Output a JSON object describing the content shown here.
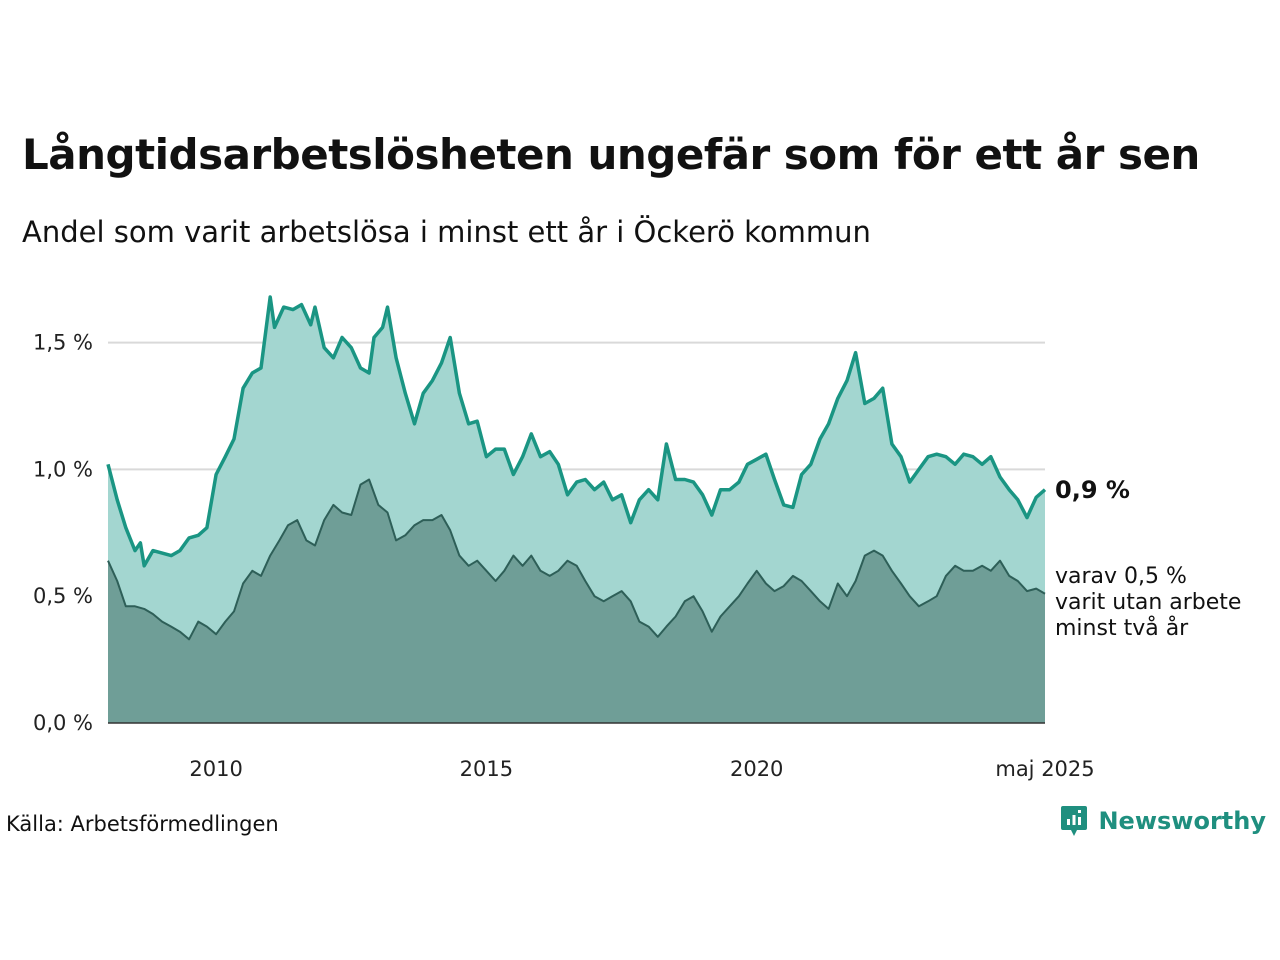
{
  "title": "Långtidsarbetslösheten ungefär som för ett år sen",
  "subtitle": "Andel som varit arbetslösa i minst ett år i Öckerö kommun",
  "source": "Källa: Arbetsförmedlingen",
  "brand": "Newsworthy",
  "colors": {
    "line_main": "#1a9583",
    "area_main": "#a3d6d0",
    "line_sub": "#2e5f58",
    "area_sub": "#6f9e97",
    "grid": "#d9d9d9"
  },
  "chart_data": {
    "type": "area",
    "x_unit": "year",
    "x_start": 2008.0,
    "x_end": 2025.333,
    "ylim": [
      0,
      1.7
    ],
    "yticks": [
      {
        "value": 0.0,
        "label": "0,0 %"
      },
      {
        "value": 0.5,
        "label": "0,5 %"
      },
      {
        "value": 1.0,
        "label": "1,0 %"
      },
      {
        "value": 1.5,
        "label": "1,5 %"
      }
    ],
    "xticks": [
      {
        "value": 2010,
        "label": "2010"
      },
      {
        "value": 2015,
        "label": "2015"
      },
      {
        "value": 2020,
        "label": "2020"
      },
      {
        "value": 2025.333,
        "label": "maj 2025"
      }
    ],
    "series": [
      {
        "key": "main",
        "end_label": "0,9 %",
        "points": [
          [
            2008.0,
            1.02
          ],
          [
            2008.17,
            0.88
          ],
          [
            2008.33,
            0.77
          ],
          [
            2008.5,
            0.68
          ],
          [
            2008.6,
            0.71
          ],
          [
            2008.67,
            0.62
          ],
          [
            2008.83,
            0.68
          ],
          [
            2009.0,
            0.67
          ],
          [
            2009.17,
            0.66
          ],
          [
            2009.33,
            0.68
          ],
          [
            2009.5,
            0.73
          ],
          [
            2009.67,
            0.74
          ],
          [
            2009.83,
            0.77
          ],
          [
            2010.0,
            0.98
          ],
          [
            2010.17,
            1.05
          ],
          [
            2010.33,
            1.12
          ],
          [
            2010.5,
            1.32
          ],
          [
            2010.67,
            1.38
          ],
          [
            2010.83,
            1.4
          ],
          [
            2011.0,
            1.68
          ],
          [
            2011.08,
            1.56
          ],
          [
            2011.25,
            1.64
          ],
          [
            2011.42,
            1.63
          ],
          [
            2011.58,
            1.65
          ],
          [
            2011.75,
            1.57
          ],
          [
            2011.83,
            1.64
          ],
          [
            2012.0,
            1.48
          ],
          [
            2012.17,
            1.44
          ],
          [
            2012.33,
            1.52
          ],
          [
            2012.5,
            1.48
          ],
          [
            2012.67,
            1.4
          ],
          [
            2012.83,
            1.38
          ],
          [
            2012.92,
            1.52
          ],
          [
            2013.08,
            1.56
          ],
          [
            2013.17,
            1.64
          ],
          [
            2013.33,
            1.44
          ],
          [
            2013.5,
            1.3
          ],
          [
            2013.67,
            1.18
          ],
          [
            2013.83,
            1.3
          ],
          [
            2014.0,
            1.35
          ],
          [
            2014.17,
            1.42
          ],
          [
            2014.33,
            1.52
          ],
          [
            2014.5,
            1.3
          ],
          [
            2014.67,
            1.18
          ],
          [
            2014.83,
            1.19
          ],
          [
            2015.0,
            1.05
          ],
          [
            2015.17,
            1.08
          ],
          [
            2015.33,
            1.08
          ],
          [
            2015.5,
            0.98
          ],
          [
            2015.67,
            1.05
          ],
          [
            2015.83,
            1.14
          ],
          [
            2016.0,
            1.05
          ],
          [
            2016.17,
            1.07
          ],
          [
            2016.33,
            1.02
          ],
          [
            2016.5,
            0.9
          ],
          [
            2016.67,
            0.95
          ],
          [
            2016.83,
            0.96
          ],
          [
            2017.0,
            0.92
          ],
          [
            2017.17,
            0.95
          ],
          [
            2017.33,
            0.88
          ],
          [
            2017.5,
            0.9
          ],
          [
            2017.67,
            0.79
          ],
          [
            2017.83,
            0.88
          ],
          [
            2018.0,
            0.92
          ],
          [
            2018.17,
            0.88
          ],
          [
            2018.33,
            1.1
          ],
          [
            2018.5,
            0.96
          ],
          [
            2018.67,
            0.96
          ],
          [
            2018.83,
            0.95
          ],
          [
            2019.0,
            0.9
          ],
          [
            2019.17,
            0.82
          ],
          [
            2019.33,
            0.92
          ],
          [
            2019.5,
            0.92
          ],
          [
            2019.67,
            0.95
          ],
          [
            2019.83,
            1.02
          ],
          [
            2020.0,
            1.04
          ],
          [
            2020.17,
            1.06
          ],
          [
            2020.33,
            0.96
          ],
          [
            2020.5,
            0.86
          ],
          [
            2020.67,
            0.85
          ],
          [
            2020.83,
            0.98
          ],
          [
            2021.0,
            1.02
          ],
          [
            2021.17,
            1.12
          ],
          [
            2021.33,
            1.18
          ],
          [
            2021.5,
            1.28
          ],
          [
            2021.67,
            1.35
          ],
          [
            2021.83,
            1.46
          ],
          [
            2022.0,
            1.26
          ],
          [
            2022.17,
            1.28
          ],
          [
            2022.33,
            1.32
          ],
          [
            2022.5,
            1.1
          ],
          [
            2022.67,
            1.05
          ],
          [
            2022.83,
            0.95
          ],
          [
            2023.0,
            1.0
          ],
          [
            2023.17,
            1.05
          ],
          [
            2023.33,
            1.06
          ],
          [
            2023.5,
            1.05
          ],
          [
            2023.67,
            1.02
          ],
          [
            2023.83,
            1.06
          ],
          [
            2024.0,
            1.05
          ],
          [
            2024.17,
            1.02
          ],
          [
            2024.33,
            1.05
          ],
          [
            2024.5,
            0.97
          ],
          [
            2024.67,
            0.92
          ],
          [
            2024.83,
            0.88
          ],
          [
            2025.0,
            0.81
          ],
          [
            2025.17,
            0.89
          ],
          [
            2025.333,
            0.92
          ]
        ]
      },
      {
        "key": "sub",
        "end_label": [
          "varav 0,5 %",
          "varit utan arbete",
          "minst två år"
        ],
        "points": [
          [
            2008.0,
            0.64
          ],
          [
            2008.17,
            0.56
          ],
          [
            2008.33,
            0.46
          ],
          [
            2008.5,
            0.46
          ],
          [
            2008.67,
            0.45
          ],
          [
            2008.83,
            0.43
          ],
          [
            2009.0,
            0.4
          ],
          [
            2009.17,
            0.38
          ],
          [
            2009.33,
            0.36
          ],
          [
            2009.5,
            0.33
          ],
          [
            2009.67,
            0.4
          ],
          [
            2009.83,
            0.38
          ],
          [
            2010.0,
            0.35
          ],
          [
            2010.17,
            0.4
          ],
          [
            2010.33,
            0.44
          ],
          [
            2010.5,
            0.55
          ],
          [
            2010.67,
            0.6
          ],
          [
            2010.83,
            0.58
          ],
          [
            2011.0,
            0.66
          ],
          [
            2011.17,
            0.72
          ],
          [
            2011.33,
            0.78
          ],
          [
            2011.5,
            0.8
          ],
          [
            2011.67,
            0.72
          ],
          [
            2011.83,
            0.7
          ],
          [
            2012.0,
            0.8
          ],
          [
            2012.17,
            0.86
          ],
          [
            2012.33,
            0.83
          ],
          [
            2012.5,
            0.82
          ],
          [
            2012.67,
            0.94
          ],
          [
            2012.83,
            0.96
          ],
          [
            2013.0,
            0.86
          ],
          [
            2013.17,
            0.83
          ],
          [
            2013.33,
            0.72
          ],
          [
            2013.5,
            0.74
          ],
          [
            2013.67,
            0.78
          ],
          [
            2013.83,
            0.8
          ],
          [
            2014.0,
            0.8
          ],
          [
            2014.17,
            0.82
          ],
          [
            2014.33,
            0.76
          ],
          [
            2014.5,
            0.66
          ],
          [
            2014.67,
            0.62
          ],
          [
            2014.83,
            0.64
          ],
          [
            2015.0,
            0.6
          ],
          [
            2015.17,
            0.56
          ],
          [
            2015.33,
            0.6
          ],
          [
            2015.5,
            0.66
          ],
          [
            2015.67,
            0.62
          ],
          [
            2015.83,
            0.66
          ],
          [
            2016.0,
            0.6
          ],
          [
            2016.17,
            0.58
          ],
          [
            2016.33,
            0.6
          ],
          [
            2016.5,
            0.64
          ],
          [
            2016.67,
            0.62
          ],
          [
            2016.83,
            0.56
          ],
          [
            2017.0,
            0.5
          ],
          [
            2017.17,
            0.48
          ],
          [
            2017.33,
            0.5
          ],
          [
            2017.5,
            0.52
          ],
          [
            2017.67,
            0.48
          ],
          [
            2017.83,
            0.4
          ],
          [
            2018.0,
            0.38
          ],
          [
            2018.17,
            0.34
          ],
          [
            2018.33,
            0.38
          ],
          [
            2018.5,
            0.42
          ],
          [
            2018.67,
            0.48
          ],
          [
            2018.83,
            0.5
          ],
          [
            2019.0,
            0.44
          ],
          [
            2019.17,
            0.36
          ],
          [
            2019.33,
            0.42
          ],
          [
            2019.5,
            0.46
          ],
          [
            2019.67,
            0.5
          ],
          [
            2019.83,
            0.55
          ],
          [
            2020.0,
            0.6
          ],
          [
            2020.17,
            0.55
          ],
          [
            2020.33,
            0.52
          ],
          [
            2020.5,
            0.54
          ],
          [
            2020.67,
            0.58
          ],
          [
            2020.83,
            0.56
          ],
          [
            2021.0,
            0.52
          ],
          [
            2021.17,
            0.48
          ],
          [
            2021.33,
            0.45
          ],
          [
            2021.5,
            0.55
          ],
          [
            2021.67,
            0.5
          ],
          [
            2021.83,
            0.56
          ],
          [
            2022.0,
            0.66
          ],
          [
            2022.17,
            0.68
          ],
          [
            2022.33,
            0.66
          ],
          [
            2022.5,
            0.6
          ],
          [
            2022.67,
            0.55
          ],
          [
            2022.83,
            0.5
          ],
          [
            2023.0,
            0.46
          ],
          [
            2023.17,
            0.48
          ],
          [
            2023.33,
            0.5
          ],
          [
            2023.5,
            0.58
          ],
          [
            2023.67,
            0.62
          ],
          [
            2023.83,
            0.6
          ],
          [
            2024.0,
            0.6
          ],
          [
            2024.17,
            0.62
          ],
          [
            2024.33,
            0.6
          ],
          [
            2024.5,
            0.64
          ],
          [
            2024.67,
            0.58
          ],
          [
            2024.83,
            0.56
          ],
          [
            2025.0,
            0.52
          ],
          [
            2025.17,
            0.53
          ],
          [
            2025.333,
            0.51
          ]
        ]
      }
    ]
  }
}
